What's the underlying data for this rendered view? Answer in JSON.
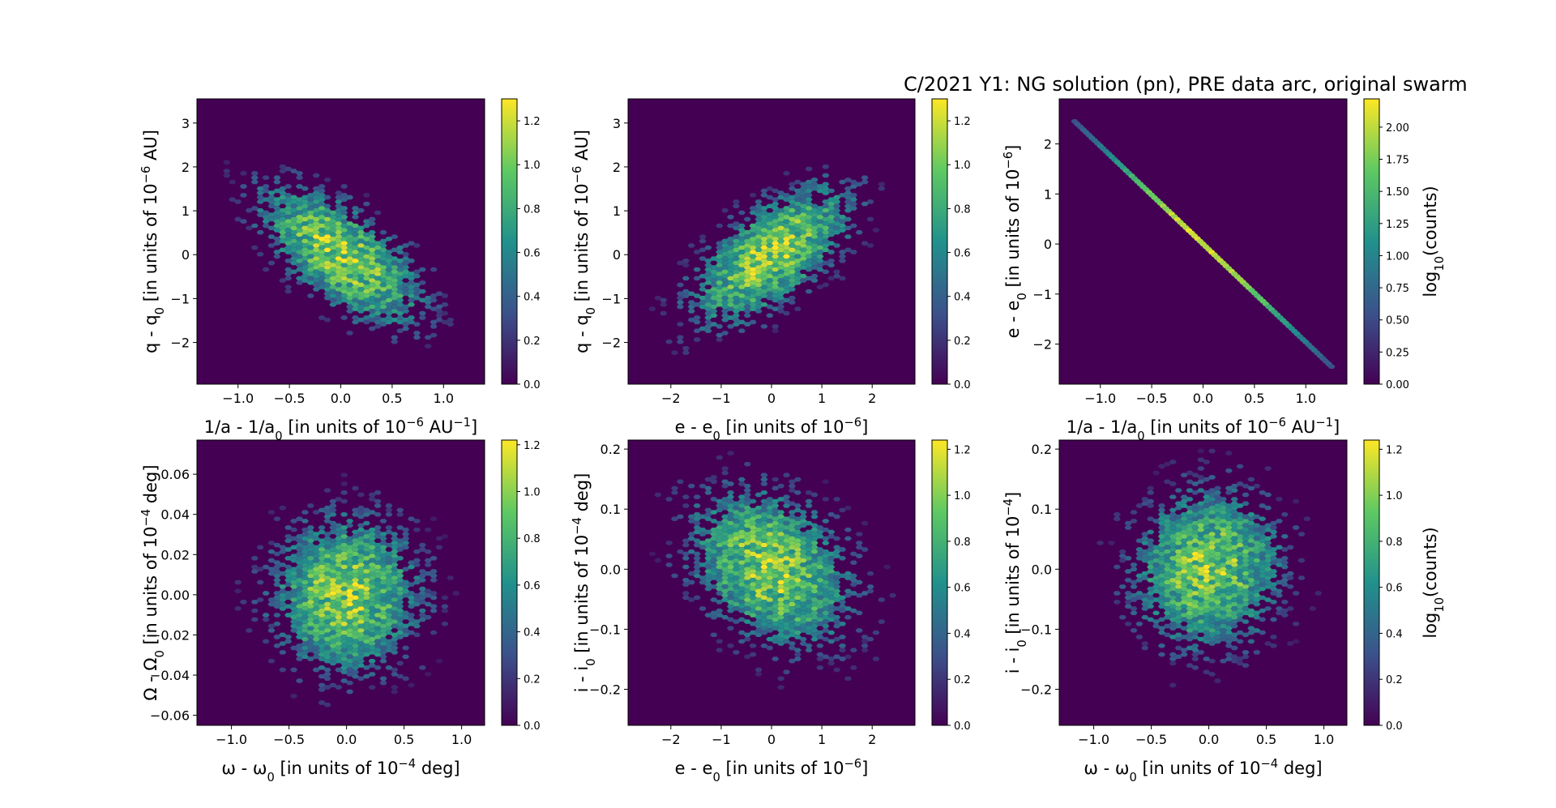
{
  "suptitle": "C/2021 Y1: NG solution (pn), PRE data arc, original swarm",
  "colors": {
    "background": "#440154",
    "colormap": [
      "#440154",
      "#3b528b",
      "#21918c",
      "#5ec962",
      "#fde725"
    ]
  },
  "chart_data": [
    {
      "type": "heatmap",
      "variant": "hexbin",
      "xlabel": {
        "main": "1/a - 1/a",
        "sub0": "0",
        "rest": " [in units of 10",
        "sup": "−6",
        "rest2": " AU",
        "sup2": "−1",
        "end": "]"
      },
      "ylabel": {
        "main": "q - q",
        "sub0": "0",
        "rest": " [in units of 10",
        "sup": "−6",
        "rest2": " AU]",
        "sup2": "",
        "end": ""
      },
      "xlim": [
        -1.4,
        1.4
      ],
      "ylim": [
        -2.95,
        3.55
      ],
      "xticks": [
        -1.0,
        -0.5,
        0.0,
        0.5,
        1.0
      ],
      "xticklabels": [
        "−1.0",
        "−0.5",
        "0.0",
        "0.5",
        "1.0"
      ],
      "yticks": [
        -2,
        -1,
        0,
        1,
        2,
        3
      ],
      "yticklabels": [
        "−2",
        "−1",
        "0",
        "1",
        "2",
        "3"
      ],
      "distribution": {
        "sx": 0.42,
        "sy": 0.85,
        "rho": -0.65,
        "peak": 1.3,
        "seed": 11
      },
      "colorbar": {
        "range": [
          0,
          1.3
        ],
        "ticks": [
          0,
          0.2,
          0.4,
          0.6,
          0.8,
          1.0,
          1.2
        ],
        "ticklabels": [
          "0.0",
          "0.2",
          "0.4",
          "0.6",
          "0.8",
          "1.0",
          "1.2"
        ],
        "label": ""
      }
    },
    {
      "type": "heatmap",
      "variant": "hexbin",
      "xlabel": {
        "main": "e - e",
        "sub0": "0",
        "rest": " [in units of 10",
        "sup": "−6",
        "rest2": "]",
        "sup2": "",
        "end": ""
      },
      "ylabel": {
        "main": "q - q",
        "sub0": "0",
        "rest": " [in units of 10",
        "sup": "−6",
        "rest2": " AU]",
        "sup2": "",
        "end": ""
      },
      "xlim": [
        -2.85,
        2.85
      ],
      "ylim": [
        -2.95,
        3.55
      ],
      "xticks": [
        -2,
        -1,
        0,
        1,
        2
      ],
      "xticklabels": [
        "−2",
        "−1",
        "0",
        "1",
        "2"
      ],
      "yticks": [
        -2,
        -1,
        0,
        1,
        2,
        3
      ],
      "yticklabels": [
        "−2",
        "−1",
        "0",
        "1",
        "2",
        "3"
      ],
      "distribution": {
        "sx": 0.85,
        "sy": 0.85,
        "rho": 0.65,
        "peak": 1.3,
        "seed": 23
      },
      "colorbar": {
        "range": [
          0,
          1.3
        ],
        "ticks": [
          0,
          0.2,
          0.4,
          0.6,
          0.8,
          1.0,
          1.2
        ],
        "ticklabels": [
          "0.0",
          "0.2",
          "0.4",
          "0.6",
          "0.8",
          "1.0",
          "1.2"
        ],
        "label": ""
      }
    },
    {
      "type": "heatmap",
      "variant": "hexbin-line",
      "xlabel": {
        "main": "1/a - 1/a",
        "sub0": "0",
        "rest": " [in units of 10",
        "sup": "−6",
        "rest2": " AU",
        "sup2": "−1",
        "end": "]"
      },
      "ylabel": {
        "main": "e - e",
        "sub0": "0",
        "rest": " [in units of 10",
        "sup": "−6",
        "rest2": "]",
        "sup2": "",
        "end": ""
      },
      "xlim": [
        -1.4,
        1.4
      ],
      "ylim": [
        -2.8,
        2.9
      ],
      "xticks": [
        -1.0,
        -0.5,
        0.0,
        0.5,
        1.0
      ],
      "xticklabels": [
        "−1.0",
        "−0.5",
        "0.0",
        "0.5",
        "1.0"
      ],
      "yticks": [
        -2,
        -1,
        0,
        1,
        2
      ],
      "yticklabels": [
        "−2",
        "−1",
        "0",
        "1",
        "2"
      ],
      "distribution": {
        "x0": -1.25,
        "y0": 2.45,
        "x1": 1.25,
        "y1": -2.45,
        "peak": 2.2,
        "seed": 5
      },
      "colorbar": {
        "range": [
          0,
          2.22
        ],
        "ticks": [
          0,
          0.25,
          0.5,
          0.75,
          1.0,
          1.25,
          1.5,
          1.75,
          2.0
        ],
        "ticklabels": [
          "0.00",
          "0.25",
          "0.50",
          "0.75",
          "1.00",
          "1.25",
          "1.50",
          "1.75",
          "2.00"
        ],
        "label": "log",
        "label_sub": "10",
        "label_rest": "(counts)"
      }
    },
    {
      "type": "heatmap",
      "variant": "hexbin",
      "xlabel": {
        "main": "ω - ω",
        "sub0": "0",
        "rest": " [in units of 10",
        "sup": "−4",
        "rest2": " deg]",
        "sup2": "",
        "end": ""
      },
      "ylabel": {
        "main": "Ω - Ω",
        "sub0": "0",
        "rest": " [in units of 10",
        "sup": "−4",
        "rest2": " deg]",
        "sup2": "",
        "end": ""
      },
      "xlim": [
        -1.3,
        1.2
      ],
      "ylim": [
        -0.065,
        0.077
      ],
      "xticks": [
        -1.0,
        -0.5,
        0.0,
        0.5,
        1.0
      ],
      "xticklabels": [
        "−1.0",
        "−0.5",
        "0.0",
        "0.5",
        "1.0"
      ],
      "yticks": [
        -0.06,
        -0.04,
        -0.02,
        0.0,
        0.02,
        0.04,
        0.06
      ],
      "yticklabels": [
        "−0.06",
        "−0.04",
        "−0.02",
        "0.00",
        "0.02",
        "0.04",
        "0.06"
      ],
      "distribution": {
        "sx": 0.34,
        "sy": 0.021,
        "rho": 0.0,
        "peak": 1.2,
        "seed": 37
      },
      "colorbar": {
        "range": [
          0,
          1.22
        ],
        "ticks": [
          0,
          0.2,
          0.4,
          0.6,
          0.8,
          1.0,
          1.2
        ],
        "ticklabels": [
          "0.0",
          "0.2",
          "0.4",
          "0.6",
          "0.8",
          "1.0",
          "1.2"
        ],
        "label": ""
      }
    },
    {
      "type": "heatmap",
      "variant": "hexbin",
      "xlabel": {
        "main": "e - e",
        "sub0": "0",
        "rest": " [in units of 10",
        "sup": "−6",
        "rest2": "]",
        "sup2": "",
        "end": ""
      },
      "ylabel": {
        "main": "i - i",
        "sub0": "0",
        "rest": " [in units of 10",
        "sup": "−4",
        "rest2": " deg]",
        "sup2": "",
        "end": ""
      },
      "xlim": [
        -2.85,
        2.85
      ],
      "ylim": [
        -0.26,
        0.215
      ],
      "xticks": [
        -2,
        -1,
        0,
        1,
        2
      ],
      "xticklabels": [
        "−2",
        "−1",
        "0",
        "1",
        "2"
      ],
      "yticks": [
        -0.2,
        -0.1,
        0.0,
        0.1,
        0.2
      ],
      "yticklabels": [
        "−0.2",
        "−0.1",
        "0.0",
        "0.1",
        "0.2"
      ],
      "distribution": {
        "sx": 0.85,
        "sy": 0.07,
        "rho": -0.3,
        "peak": 1.22,
        "seed": 41
      },
      "colorbar": {
        "range": [
          0,
          1.24
        ],
        "ticks": [
          0,
          0.2,
          0.4,
          0.6,
          0.8,
          1.0,
          1.2
        ],
        "ticklabels": [
          "0.0",
          "0.2",
          "0.4",
          "0.6",
          "0.8",
          "1.0",
          "1.2"
        ],
        "label": ""
      }
    },
    {
      "type": "heatmap",
      "variant": "hexbin",
      "xlabel": {
        "main": "ω - ω",
        "sub0": "0",
        "rest": " [in units of 10",
        "sup": "−4",
        "rest2": " deg]",
        "sup2": "",
        "end": ""
      },
      "ylabel": {
        "main": "i - i",
        "sub0": "0",
        "rest": " [in units of 10",
        "sup": "−4",
        "rest2": "]",
        "sup2": "",
        "end": ""
      },
      "xlim": [
        -1.3,
        1.2
      ],
      "ylim": [
        -0.26,
        0.215
      ],
      "xticks": [
        -1.0,
        -0.5,
        0.0,
        0.5,
        1.0
      ],
      "xticklabels": [
        "−1.0",
        "−0.5",
        "0.0",
        "0.5",
        "1.0"
      ],
      "yticks": [
        -0.2,
        -0.1,
        0.0,
        0.1,
        0.2
      ],
      "yticklabels": [
        "−0.2",
        "−0.1",
        "0.0",
        "0.1",
        "0.2"
      ],
      "distribution": {
        "sx": 0.34,
        "sy": 0.07,
        "rho": 0.05,
        "peak": 1.2,
        "seed": 53
      },
      "colorbar": {
        "range": [
          0,
          1.24
        ],
        "ticks": [
          0,
          0.2,
          0.4,
          0.6,
          0.8,
          1.0,
          1.2
        ],
        "ticklabels": [
          "0.0",
          "0.2",
          "0.4",
          "0.6",
          "0.8",
          "1.0",
          "1.2"
        ],
        "label": "log",
        "label_sub": "10",
        "label_rest": "(counts)"
      }
    }
  ]
}
